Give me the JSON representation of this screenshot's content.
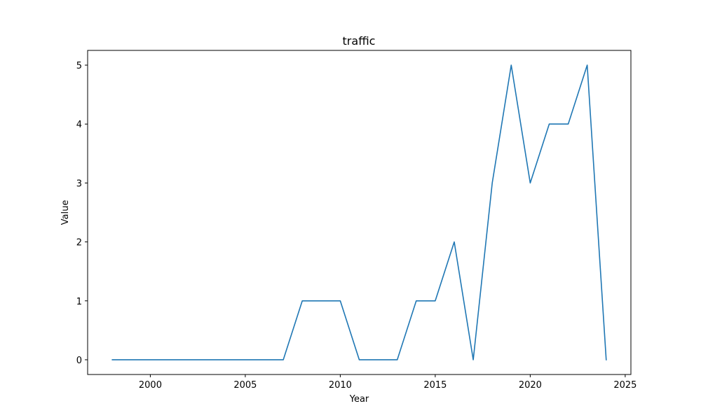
{
  "chart_data": {
    "type": "line",
    "title": "traffic",
    "xlabel": "Year",
    "ylabel": "Value",
    "xlim": [
      1996.7,
      2025.3
    ],
    "ylim": [
      -0.25,
      5.25
    ],
    "x_ticks": [
      2000,
      2005,
      2010,
      2015,
      2020,
      2025
    ],
    "y_ticks": [
      0,
      1,
      2,
      3,
      4,
      5
    ],
    "grid": false,
    "series": [
      {
        "color": "#1f77b4",
        "x": [
          1998,
          1999,
          2000,
          2001,
          2002,
          2003,
          2004,
          2005,
          2006,
          2007,
          2008,
          2009,
          2010,
          2011,
          2012,
          2013,
          2014,
          2015,
          2016,
          2017,
          2018,
          2019,
          2020,
          2021,
          2022,
          2023,
          2024
        ],
        "y": [
          0,
          0,
          0,
          0,
          0,
          0,
          0,
          0,
          0,
          0,
          1,
          1,
          1,
          0,
          0,
          0,
          1,
          1,
          2,
          0,
          3,
          5,
          3,
          4,
          4,
          5,
          0
        ]
      }
    ]
  }
}
